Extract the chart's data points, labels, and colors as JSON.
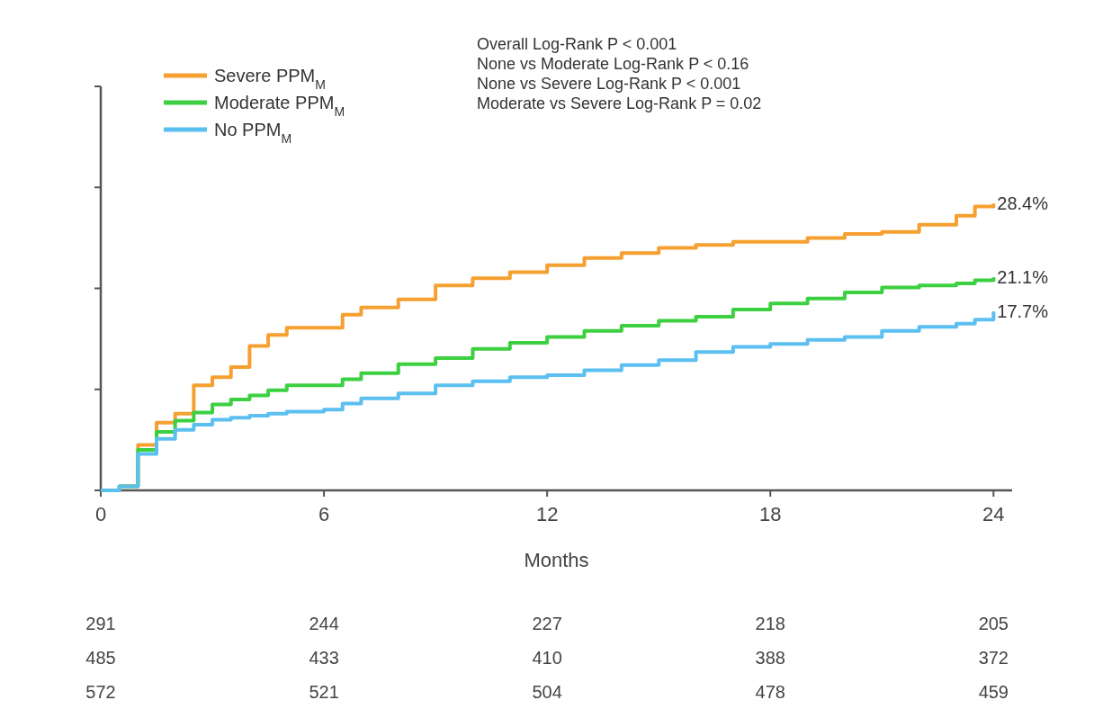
{
  "chart_data": {
    "type": "step",
    "xlabel": "Months",
    "x": [
      0,
      0.5,
      1,
      1.5,
      2,
      2.5,
      3,
      3.5,
      4,
      4.5,
      5,
      6,
      6.5,
      7,
      8,
      9,
      10,
      11,
      12,
      13,
      14,
      15,
      16,
      17,
      18,
      19,
      20,
      21,
      22,
      23,
      23.5,
      24
    ],
    "series": [
      {
        "name": "Severe PPM$_{M}$",
        "color": "#f5a030",
        "values": [
          0,
          0.4,
          4.5,
          6.7,
          7.6,
          10.4,
          11.2,
          12.2,
          14.3,
          15.4,
          16.1,
          16.1,
          17.4,
          18.1,
          18.9,
          20.3,
          21.0,
          21.6,
          22.3,
          23.0,
          23.5,
          24.0,
          24.3,
          24.6,
          24.6,
          25.0,
          25.4,
          25.6,
          26.3,
          27.2,
          28.1,
          28.4
        ],
        "value_labels": [
          null,
          null,
          null,
          null,
          null,
          null,
          null,
          null,
          null,
          null,
          null,
          null,
          null,
          null,
          null,
          null,
          null,
          null,
          null,
          null,
          null,
          null,
          null,
          null,
          null,
          null,
          null,
          null,
          null,
          null,
          null,
          "28.4%"
        ]
      },
      {
        "name": "Moderate PPM$_{M}$",
        "color": "#3cd040",
        "values": [
          0,
          0.4,
          4.0,
          5.8,
          6.9,
          7.7,
          8.5,
          9.0,
          9.4,
          9.9,
          10.4,
          10.4,
          11.0,
          11.6,
          12.5,
          13.1,
          14.0,
          14.6,
          15.2,
          15.8,
          16.3,
          16.8,
          17.2,
          17.9,
          18.5,
          19.0,
          19.6,
          20.1,
          20.3,
          20.5,
          20.8,
          21.1
        ],
        "value_labels": [
          null,
          null,
          null,
          null,
          null,
          null,
          null,
          null,
          null,
          null,
          null,
          null,
          null,
          null,
          null,
          null,
          null,
          null,
          null,
          null,
          null,
          null,
          null,
          null,
          null,
          null,
          null,
          null,
          null,
          null,
          null,
          "21.1%"
        ]
      },
      {
        "name": "No PPM$_{M}$",
        "color": "#5bc0f0",
        "values": [
          0,
          0.4,
          3.6,
          5.1,
          6.0,
          6.5,
          7.0,
          7.2,
          7.4,
          7.6,
          7.8,
          8.0,
          8.6,
          9.1,
          9.6,
          10.4,
          10.8,
          11.2,
          11.4,
          11.9,
          12.4,
          12.9,
          13.7,
          14.2,
          14.5,
          14.9,
          15.2,
          15.8,
          16.2,
          16.5,
          16.9,
          17.7
        ],
        "value_labels": [
          null,
          null,
          null,
          null,
          null,
          null,
          null,
          null,
          null,
          null,
          null,
          null,
          null,
          null,
          null,
          null,
          null,
          null,
          null,
          null,
          null,
          null,
          null,
          null,
          null,
          null,
          null,
          null,
          null,
          null,
          null,
          "17.7%"
        ]
      }
    ],
    "xlim": [
      0,
      24.5
    ],
    "xticks": [
      0,
      6,
      12,
      18,
      24
    ],
    "ylim": [
      0,
      40
    ],
    "yticks": [
      {
        "value": 0,
        "label": null
      },
      {
        "value": 10,
        "label": null
      },
      {
        "value": 20,
        "label": null
      },
      {
        "value": 30,
        "label": null
      },
      {
        "value": 40,
        "label": null
      }
    ],
    "tick_labels": "x",
    "grid": false,
    "legend": "top left",
    "annotations": [
      "Overall Log-Rank P < 0.001",
      "None vs Moderate Log-Rank P < 0.16",
      "None vs Severe Log-Rank P < 0.001",
      "Moderate vs Severe Log-Rank P = 0.02",
      "291",
      "244",
      "227",
      "218",
      "205",
      "485",
      "433",
      "410",
      "388",
      "372",
      "572",
      "521",
      "504",
      "478",
      "459"
    ]
  }
}
